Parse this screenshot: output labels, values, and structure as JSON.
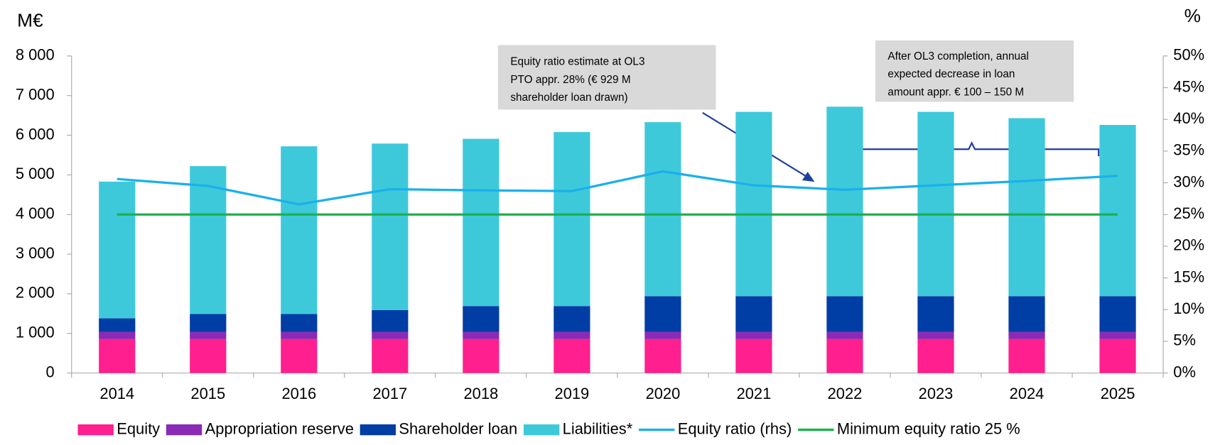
{
  "chart_data": {
    "type": "bar",
    "y_label": "M€",
    "y2_label": "%",
    "categories": [
      "2014",
      "2015",
      "2016",
      "2017",
      "2018",
      "2019",
      "2020",
      "2021",
      "2022",
      "2023",
      "2024",
      "2025"
    ],
    "series": [
      {
        "name": "Equity",
        "color": "#ff1f8e",
        "values": [
          860,
          860,
          860,
          860,
          860,
          860,
          860,
          860,
          860,
          860,
          860,
          860
        ]
      },
      {
        "name": "Appropriation reserve",
        "color": "#8a2bb5",
        "values": [
          180,
          180,
          180,
          180,
          180,
          180,
          180,
          180,
          180,
          180,
          180,
          180
        ]
      },
      {
        "name": "Shareholder loan",
        "color": "#003da5",
        "values": [
          340,
          450,
          450,
          550,
          650,
          650,
          900,
          900,
          900,
          900,
          900,
          900
        ]
      },
      {
        "name": "Liabilities*",
        "color": "#3ec9da",
        "values": [
          3450,
          3730,
          4230,
          4200,
          4220,
          4390,
          4390,
          4650,
          4780,
          4650,
          4490,
          4320
        ]
      },
      {
        "name": "Equity ratio (rhs)",
        "type": "line",
        "axis": "y2",
        "color": "#1ab0ec",
        "values": [
          30.6,
          29.5,
          26.6,
          29.0,
          28.8,
          28.7,
          31.8,
          29.6,
          28.9,
          29.6,
          30.3,
          31.1
        ]
      },
      {
        "name": "Minimum equity ratio 25 %",
        "type": "line",
        "axis": "y2",
        "color": "#1db04a",
        "values": [
          25,
          25,
          25,
          25,
          25,
          25,
          25,
          25,
          25,
          25,
          25,
          25
        ]
      }
    ],
    "ylim": [
      0,
      8000
    ],
    "yticks": [
      0,
      {
        "value": 1000,
        "label": "1 000"
      },
      {
        "value": 2000,
        "label": "2 000"
      },
      {
        "value": 3000,
        "label": "3 000"
      },
      {
        "value": 4000,
        "label": "4 000"
      },
      {
        "value": 5000,
        "label": "5 000"
      },
      {
        "value": 6000,
        "label": "6 000"
      },
      {
        "value": 7000,
        "label": "7 000"
      },
      {
        "value": 8000,
        "label": "8 000"
      }
    ],
    "y2lim": [
      0,
      50
    ],
    "y2ticks": [
      {
        "value": 0,
        "label": "0%"
      },
      {
        "value": 5,
        "label": "5%"
      },
      {
        "value": 10,
        "label": "10%"
      },
      {
        "value": 15,
        "label": "15%"
      },
      {
        "value": 20,
        "label": "20%"
      },
      {
        "value": 25,
        "label": "25%"
      },
      {
        "value": 30,
        "label": "30%"
      },
      {
        "value": 35,
        "label": "35%"
      },
      {
        "value": 40,
        "label": "40%"
      },
      {
        "value": 45,
        "label": "45%"
      },
      {
        "value": 50,
        "label": "50%"
      }
    ],
    "legend": "bottom",
    "annotations": [
      {
        "lines": [
          "Equity ratio estimate at OL3",
          "PTO appr. 28% (€ 929 M",
          "shareholder loan drawn)"
        ]
      },
      {
        "lines": [
          "After OL3 completion, annual",
          "expected decrease in loan",
          "amount appr. € 100 – 150 M"
        ]
      }
    ]
  }
}
